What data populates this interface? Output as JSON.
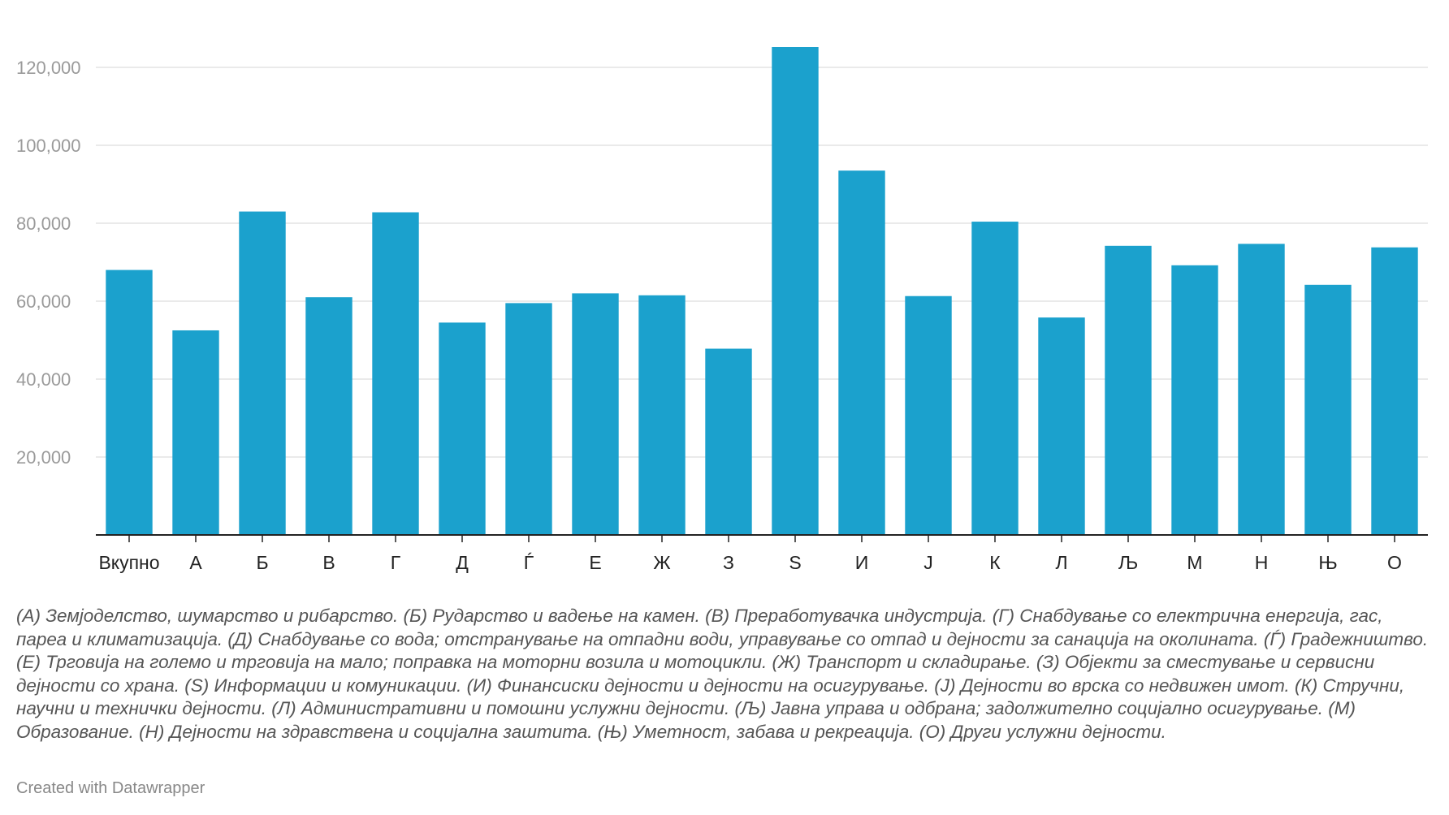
{
  "chart_data": {
    "type": "bar",
    "categories": [
      "Вкупно",
      "А",
      "Б",
      "В",
      "Г",
      "Д",
      "Ѓ",
      "Е",
      "Ж",
      "З",
      "S",
      "И",
      "Ј",
      "К",
      "Л",
      "Љ",
      "М",
      "Н",
      "Њ",
      "О"
    ],
    "values": [
      68000,
      52500,
      83000,
      61000,
      82800,
      54500,
      59500,
      62000,
      61500,
      47800,
      125200,
      93500,
      61300,
      80400,
      55800,
      74200,
      69200,
      74700,
      64200,
      73800
    ],
    "yticks": [
      20000,
      40000,
      60000,
      80000,
      100000,
      120000
    ],
    "ytick_labels": [
      "20,000",
      "40,000",
      "60,000",
      "80,000",
      "100,000",
      "120,000"
    ],
    "ylim": [
      0,
      125200
    ],
    "grid": true,
    "bar_color": "#1ba1cd",
    "gridline_color": "#e3e3e3",
    "baseline_color": "#222222"
  },
  "notes": "(А) Земјоделство, шумарство и рибарство. (Б) Рударство и вадење на камен. (В) Преработувачка индустрија. (Г) Снабдување со електрична енергија, гас, пареа и климатизација. (Д) Снабдување со вода; отстранување на отпадни води, управување со отпад и дејности за санација на околината. (Ѓ) Градежништво. (Е) Трговија на големо и трговија на мало; поправка на моторни возила и мотоцикли. (Ж) Транспорт и складирање. (З) Објекти за сместување и сервисни дејности со храна. (S) Информации и комуникации. (И) Финансиски дејности и дејности на осигурување. (Ј) Дејности во врска со недвижен имот. (К) Стручни, научни и технички дејности. (Л) Административни и помошни услужни дејности. (Љ) Јавна управа и одбрана; задолжително социјално осигурување. (М) Образование. (Н) Дејности на здравствена и социјална заштита. (Њ) Уметност, забава и рекреација. (О) Други услужни дејности.",
  "credit": "Created with Datawrapper"
}
